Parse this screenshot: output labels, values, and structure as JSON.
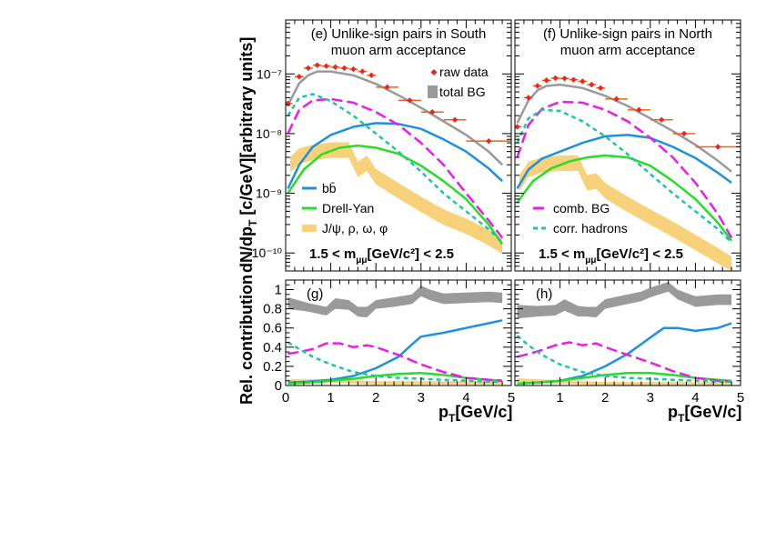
{
  "figure": {
    "ylabel_top": "dN/dp",
    "ylabel_top_sub": "T",
    "ylabel_top_rest": " [c/GeV][arbitrary units]",
    "ylabel_bottom": "Rel. contribution",
    "xlabel": "p",
    "xlabel_sub": "T",
    "xlabel_rest": "[GeV/c]",
    "mass_cut": "1.5 < m",
    "mass_cut_sub": "μμ",
    "mass_cut_rest": "[GeV/c²] < 2.5"
  },
  "legend": {
    "raw_data": "raw data",
    "total_bg": "total BG",
    "bb": "bb̄",
    "drell_yan": "Drell-Yan",
    "resonances": "J/ψ, ρ, ω, φ",
    "comb_bg": "comb. BG",
    "corr_hadrons": "corr. hadrons"
  },
  "colors": {
    "raw_data": "#e8281e",
    "total_bg": "#9a9a9a",
    "bb": "#1e90e0",
    "drell_yan": "#28dc28",
    "resonances": "#f8d27a",
    "comb_bg": "#e81ee8",
    "corr_hadrons": "#20c4a4",
    "error_bar": "#e8641e"
  },
  "chart_data": [
    {
      "id": "e",
      "type": "line",
      "title_line1": "(e) Unlike-sign pairs in South",
      "title_line2": "muon arm acceptance",
      "yscale": "log",
      "ylim": [
        5e-11,
        8e-07
      ],
      "xlim": [
        0,
        5
      ],
      "yticks": [
        "10⁻¹⁰",
        "10⁻⁹",
        "10⁻⁸",
        "10⁻⁷"
      ],
      "xticks": [
        "0",
        "1",
        "2",
        "3",
        "4",
        "5"
      ],
      "raw_data": {
        "x": [
          0.05,
          0.3,
          0.5,
          0.7,
          0.9,
          1.1,
          1.3,
          1.5,
          1.7,
          1.9,
          2.25,
          2.75,
          3.25,
          3.75,
          4.5
        ],
        "y": [
          3.2e-08,
          9e-08,
          1.25e-07,
          1.4e-07,
          1.35e-07,
          1.3e-07,
          1.25e-07,
          1.2e-07,
          1.1e-07,
          9.5e-08,
          6e-08,
          3.6e-08,
          2.3e-08,
          1.7e-08,
          7.5e-09
        ]
      },
      "total_bg": {
        "x": [
          0.05,
          0.3,
          0.5,
          0.7,
          1.0,
          1.5,
          2.0,
          2.5,
          3.0,
          3.5,
          4.0,
          4.5,
          4.8
        ],
        "y": [
          3e-08,
          7e-08,
          9.5e-08,
          1.1e-07,
          1.1e-07,
          9.5e-08,
          6.8e-08,
          4.4e-08,
          2.7e-08,
          1.6e-08,
          9.5e-09,
          5e-09,
          3e-09
        ]
      },
      "bb": {
        "x": [
          0.05,
          0.3,
          0.6,
          1.0,
          1.5,
          2.0,
          2.5,
          3.0,
          3.5,
          4.0,
          4.5,
          4.8
        ],
        "y": [
          1.2e-09,
          3e-09,
          6e-09,
          9.5e-09,
          1.3e-08,
          1.5e-08,
          1.45e-08,
          1.2e-08,
          8e-09,
          5e-09,
          2.6e-09,
          1.6e-09
        ]
      },
      "drell_yan": {
        "x": [
          0.05,
          0.4,
          0.8,
          1.2,
          1.6,
          2.0,
          2.5,
          3.0,
          3.5,
          4.0,
          4.5,
          4.8
        ],
        "y": [
          1e-09,
          2.5e-09,
          4.5e-09,
          5.8e-09,
          6.3e-09,
          5.8e-09,
          4.6e-09,
          2.9e-09,
          1.6e-09,
          8e-10,
          3e-10,
          1.4e-10
        ]
      },
      "resonances": {
        "x": [
          0.1,
          0.3,
          0.6,
          1.0,
          1.4,
          1.6,
          1.8,
          2.0,
          2.5,
          3.0,
          3.5,
          4.0,
          4.5,
          4.8
        ],
        "y": [
          3e-09,
          4.2e-09,
          4.8e-09,
          5.3e-09,
          5.3e-09,
          2.5e-09,
          3.2e-09,
          1.9e-09,
          1.1e-09,
          6.5e-10,
          4e-10,
          2.8e-10,
          1.8e-10,
          1.3e-10
        ]
      },
      "comb_bg": {
        "x": [
          0.05,
          0.3,
          0.6,
          1.0,
          1.5,
          2.0,
          2.5,
          3.0,
          3.5,
          4.0,
          4.5,
          4.8
        ],
        "y": [
          1e-08,
          2.5e-08,
          3.6e-08,
          3.8e-08,
          3.3e-08,
          2.3e-08,
          1.4e-08,
          7e-09,
          3e-09,
          1e-09,
          3.5e-10,
          1.8e-10
        ]
      },
      "corr_hadrons": {
        "x": [
          0.05,
          0.3,
          0.6,
          1.0,
          1.5,
          2.0,
          2.5,
          3.0,
          3.5,
          4.0,
          4.5,
          4.8
        ],
        "y": [
          2e-08,
          4e-08,
          4.6e-08,
          3.5e-08,
          2e-08,
          1e-08,
          5e-09,
          2.3e-09,
          1e-09,
          5e-10,
          2.5e-10,
          1.5e-10
        ]
      }
    },
    {
      "id": "f",
      "type": "line",
      "title_line1": "(f) Unlike-sign pairs in North",
      "title_line2": "muon arm acceptance",
      "yscale": "log",
      "ylim": [
        5e-11,
        8e-07
      ],
      "xlim": [
        0,
        5
      ],
      "yticks": [],
      "xticks": [
        "0",
        "1",
        "2",
        "3",
        "4",
        "5"
      ],
      "raw_data": {
        "x": [
          0.05,
          0.3,
          0.5,
          0.7,
          0.9,
          1.1,
          1.3,
          1.5,
          1.7,
          1.9,
          2.25,
          2.75,
          3.25,
          3.75,
          4.5
        ],
        "y": [
          1.3e-08,
          4e-08,
          6.3e-08,
          7.8e-08,
          8.5e-08,
          8.4e-08,
          8e-08,
          7.5e-08,
          6.6e-08,
          5.8e-08,
          3.8e-08,
          2.5e-08,
          1.7e-08,
          1e-08,
          6e-09
        ]
      },
      "total_bg": {
        "x": [
          0.05,
          0.3,
          0.5,
          0.7,
          1.0,
          1.5,
          2.0,
          2.5,
          3.0,
          3.5,
          4.0,
          4.5,
          4.8
        ],
        "y": [
          1.5e-08,
          3.6e-08,
          5.3e-08,
          6.3e-08,
          6.6e-08,
          5.8e-08,
          4.3e-08,
          2.9e-08,
          1.8e-08,
          1.1e-08,
          6.5e-09,
          3.5e-09,
          2.3e-09
        ]
      },
      "bb": {
        "x": [
          0.05,
          0.3,
          0.6,
          1.0,
          1.5,
          2.0,
          2.5,
          3.0,
          3.5,
          4.0,
          4.5,
          4.8
        ],
        "y": [
          1.2e-09,
          2.5e-09,
          3.8e-09,
          5e-09,
          7e-09,
          9e-09,
          9.5e-09,
          8.5e-09,
          6e-09,
          3.9e-09,
          2.2e-09,
          1.5e-09
        ]
      },
      "drell_yan": {
        "x": [
          0.05,
          0.4,
          0.8,
          1.2,
          1.6,
          2.0,
          2.5,
          3.0,
          3.5,
          4.0,
          4.5,
          4.8
        ],
        "y": [
          7e-10,
          1.6e-09,
          2.6e-09,
          3.4e-09,
          4e-09,
          4.3e-09,
          4e-09,
          2.9e-09,
          1.6e-09,
          8e-10,
          3.2e-10,
          1.6e-10
        ]
      },
      "resonances": {
        "x": [
          0.1,
          0.3,
          0.6,
          1.0,
          1.4,
          1.6,
          1.8,
          2.0,
          2.5,
          3.0,
          3.5,
          4.0,
          4.5,
          4.8
        ],
        "y": [
          1.5e-09,
          2.5e-09,
          3e-09,
          3.2e-09,
          3.2e-09,
          1.5e-09,
          1.6e-09,
          1.1e-09,
          6.5e-10,
          4e-10,
          2.5e-10,
          1.5e-10,
          9e-11,
          6.5e-11
        ]
      },
      "comb_bg": {
        "x": [
          0.05,
          0.3,
          0.6,
          1.0,
          1.5,
          2.0,
          2.5,
          3.0,
          3.5,
          4.0,
          4.5,
          4.8
        ],
        "y": [
          4e-09,
          1.4e-08,
          2.6e-08,
          3.4e-08,
          3.3e-08,
          2.5e-08,
          1.6e-08,
          8.5e-09,
          4e-09,
          1.5e-09,
          4.5e-10,
          1.8e-10
        ]
      },
      "corr_hadrons": {
        "x": [
          0.05,
          0.3,
          0.6,
          1.0,
          1.5,
          2.0,
          2.5,
          3.0,
          3.5,
          4.0,
          4.5,
          4.8
        ],
        "y": [
          7e-09,
          1.8e-08,
          2.5e-08,
          2.4e-08,
          1.6e-08,
          9e-09,
          4.5e-09,
          2.1e-09,
          1e-09,
          5e-10,
          2.5e-10,
          1.5e-10
        ]
      }
    },
    {
      "id": "g",
      "type": "line",
      "title_line1": "(g)",
      "yscale": "linear",
      "ylim": [
        0,
        1.1
      ],
      "xlim": [
        0,
        5
      ],
      "yticks": [
        "0",
        "0.2",
        "0.4",
        "0.6",
        "0.8",
        "1"
      ],
      "xticks": [
        "0",
        "1",
        "2",
        "3",
        "4",
        "5"
      ],
      "total_bg_band": {
        "x": [
          0.05,
          0.5,
          0.9,
          1.1,
          1.4,
          1.6,
          1.8,
          2.0,
          2.4,
          2.8,
          3.0,
          3.2,
          3.5,
          4.0,
          4.5,
          4.8
        ],
        "lo": [
          0.8,
          0.77,
          0.73,
          0.8,
          0.79,
          0.72,
          0.71,
          0.8,
          0.82,
          0.85,
          0.93,
          0.89,
          0.85,
          0.86,
          0.87,
          0.86
        ],
        "hi": [
          0.92,
          0.86,
          0.82,
          0.91,
          0.89,
          0.82,
          0.82,
          0.89,
          0.92,
          0.95,
          1.04,
          1.0,
          0.96,
          0.97,
          0.98,
          0.97
        ]
      },
      "bb": {
        "x": [
          0.05,
          0.5,
          1.0,
          1.5,
          2.0,
          2.5,
          2.8,
          3.0,
          3.5,
          4.0,
          4.5,
          4.8
        ],
        "y": [
          0.03,
          0.04,
          0.06,
          0.1,
          0.18,
          0.3,
          0.43,
          0.51,
          0.55,
          0.6,
          0.65,
          0.68
        ]
      },
      "drell_yan": {
        "x": [
          0.05,
          0.5,
          1.0,
          1.5,
          2.0,
          2.5,
          3.0,
          3.5,
          4.0,
          4.5,
          4.8
        ],
        "y": [
          0.02,
          0.03,
          0.05,
          0.07,
          0.1,
          0.12,
          0.13,
          0.11,
          0.08,
          0.06,
          0.05
        ]
      },
      "resonances": {
        "x": [
          0.05,
          0.5,
          1.0,
          1.5,
          2.0,
          2.5,
          3.0,
          3.5,
          4.0,
          4.5,
          4.8
        ],
        "y": [
          0.05,
          0.05,
          0.05,
          0.04,
          0.03,
          0.03,
          0.03,
          0.03,
          0.03,
          0.03,
          0.03
        ]
      },
      "comb_bg": {
        "x": [
          0.05,
          0.3,
          0.6,
          0.9,
          1.2,
          1.5,
          1.8,
          2.0,
          2.5,
          3.0,
          3.5,
          4.0,
          4.5,
          4.8
        ],
        "y": [
          0.33,
          0.35,
          0.38,
          0.44,
          0.44,
          0.4,
          0.42,
          0.4,
          0.32,
          0.22,
          0.14,
          0.08,
          0.06,
          0.05
        ]
      },
      "corr_hadrons": {
        "x": [
          0.05,
          0.3,
          0.6,
          1.0,
          1.5,
          2.0,
          2.5,
          3.0,
          3.5,
          4.0,
          4.5,
          4.8
        ],
        "y": [
          0.45,
          0.38,
          0.3,
          0.22,
          0.14,
          0.1,
          0.08,
          0.07,
          0.06,
          0.05,
          0.04,
          0.04
        ]
      }
    },
    {
      "id": "h",
      "type": "line",
      "title_line1": "(h)",
      "yscale": "linear",
      "ylim": [
        0,
        1.1
      ],
      "xlim": [
        0,
        5
      ],
      "yticks": [],
      "xticks": [
        "0",
        "1",
        "2",
        "3",
        "4",
        "5"
      ],
      "total_bg_band": {
        "x": [
          0.05,
          0.5,
          0.9,
          1.1,
          1.4,
          1.6,
          1.8,
          2.0,
          2.4,
          2.8,
          3.0,
          3.4,
          3.6,
          4.0,
          4.5,
          4.8
        ],
        "lo": [
          0.7,
          0.72,
          0.73,
          0.78,
          0.72,
          0.72,
          0.71,
          0.8,
          0.84,
          0.88,
          0.92,
          0.98,
          0.9,
          0.82,
          0.84,
          0.84
        ],
        "hi": [
          0.84,
          0.83,
          0.84,
          0.9,
          0.83,
          0.82,
          0.82,
          0.9,
          0.94,
          0.98,
          1.02,
          1.08,
          1.0,
          0.93,
          0.95,
          0.95
        ]
      },
      "bb": {
        "x": [
          0.05,
          0.5,
          1.0,
          1.5,
          2.0,
          2.5,
          3.0,
          3.3,
          3.6,
          4.0,
          4.5,
          4.8
        ],
        "y": [
          0.02,
          0.03,
          0.05,
          0.1,
          0.2,
          0.33,
          0.5,
          0.6,
          0.6,
          0.57,
          0.6,
          0.65
        ]
      },
      "drell_yan": {
        "x": [
          0.05,
          0.5,
          1.0,
          1.5,
          2.0,
          2.5,
          3.0,
          3.5,
          4.0,
          4.5,
          4.8
        ],
        "y": [
          0.02,
          0.03,
          0.05,
          0.08,
          0.11,
          0.13,
          0.13,
          0.11,
          0.08,
          0.06,
          0.05
        ]
      },
      "resonances": {
        "x": [
          0.05,
          0.5,
          1.0,
          1.5,
          2.0,
          2.5,
          3.0,
          3.5,
          4.0,
          4.5,
          4.8
        ],
        "y": [
          0.06,
          0.05,
          0.04,
          0.03,
          0.02,
          0.02,
          0.02,
          0.02,
          0.02,
          0.02,
          0.02
        ]
      },
      "comb_bg": {
        "x": [
          0.05,
          0.3,
          0.6,
          0.9,
          1.2,
          1.5,
          1.8,
          2.0,
          2.5,
          3.0,
          3.5,
          4.0,
          4.5,
          4.8
        ],
        "y": [
          0.3,
          0.33,
          0.37,
          0.42,
          0.45,
          0.42,
          0.44,
          0.4,
          0.32,
          0.24,
          0.15,
          0.08,
          0.05,
          0.04
        ]
      },
      "corr_hadrons": {
        "x": [
          0.05,
          0.3,
          0.6,
          1.0,
          1.5,
          2.0,
          2.5,
          3.0,
          3.5,
          4.0,
          4.5,
          4.8
        ],
        "y": [
          0.52,
          0.42,
          0.32,
          0.22,
          0.14,
          0.1,
          0.08,
          0.07,
          0.06,
          0.05,
          0.04,
          0.04
        ]
      }
    }
  ]
}
